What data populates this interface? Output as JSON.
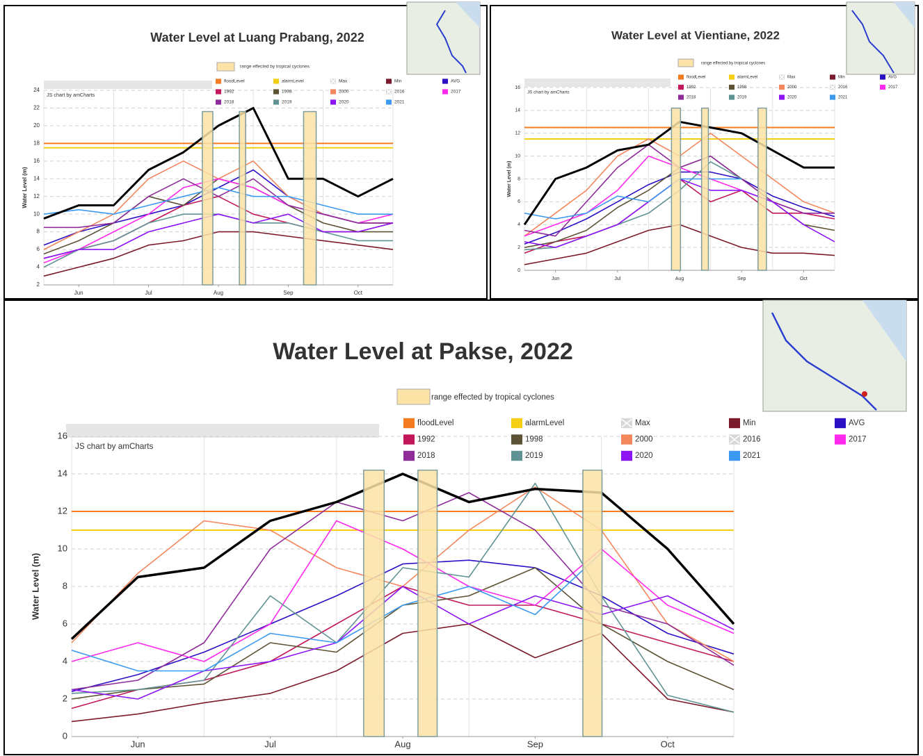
{
  "chart_data": [
    {
      "type": "line",
      "title": "Water Level at Luang Prabang, 2022",
      "y_label": "Water Level (m)",
      "credit": "JS chart by amCharts",
      "band_label": "range effected by tropical cyclones",
      "band_color": "#fce3a6",
      "bands": [
        {
          "from": 4.54,
          "to": 4.84,
          "top": 21.6
        },
        {
          "from": 5.6,
          "to": 5.78,
          "top": 21.6
        },
        {
          "from": 7.44,
          "to": 7.8,
          "top": 21.6
        }
      ],
      "x": [
        0,
        1,
        2,
        3,
        4,
        5,
        6,
        7,
        8,
        9,
        10
      ],
      "xlim": [
        0,
        10
      ],
      "xticks": [
        {
          "value": 1,
          "label": "Jun"
        },
        {
          "value": 3,
          "label": "Jul"
        },
        {
          "value": 5,
          "label": "Aug"
        },
        {
          "value": 7,
          "label": "Sep"
        },
        {
          "value": 9,
          "label": "Oct"
        }
      ],
      "ylim": [
        2,
        24
      ],
      "yticks": [
        2,
        4,
        6,
        8,
        10,
        12,
        14,
        16,
        18,
        20,
        22,
        24
      ],
      "grid": true,
      "series": [
        {
          "name": "floodLevel",
          "color": "#f47b20",
          "level": 18
        },
        {
          "name": "alarmLevel",
          "color": "#f5cf15",
          "level": 17.5
        },
        {
          "name": "Max",
          "color": "#bbbbbb",
          "hidden": true
        },
        {
          "name": "Min",
          "color": "#7b1a2a",
          "values": [
            3,
            4,
            5,
            6.5,
            7,
            8,
            8,
            7.5,
            7,
            6.5,
            6
          ]
        },
        {
          "name": "AVG",
          "color": "#2a0fc4",
          "values": [
            6.5,
            8,
            9,
            10,
            11,
            13,
            15,
            12,
            10,
            9,
            9
          ]
        },
        {
          "name": "1992",
          "color": "#c2185b",
          "values": [
            5,
            6,
            7,
            9,
            11,
            12,
            10,
            9,
            8,
            8,
            9
          ]
        },
        {
          "name": "1998",
          "color": "#5c5234",
          "values": [
            5.5,
            7,
            9,
            12,
            11,
            14,
            13,
            11,
            9,
            8,
            8
          ]
        },
        {
          "name": "2000",
          "color": "#f4875c",
          "values": [
            6,
            8,
            10,
            14,
            16,
            14,
            16,
            12,
            10,
            9,
            9
          ]
        },
        {
          "name": "2016",
          "color": "#bbbbbb",
          "hidden": true
        },
        {
          "name": "2017",
          "color": "#ff29ee",
          "values": [
            4.5,
            6,
            8,
            10,
            13,
            14,
            13,
            11,
            10,
            9,
            10
          ]
        },
        {
          "name": "2018",
          "color": "#8e2c9a",
          "values": [
            8.5,
            8.5,
            9,
            12,
            14,
            12,
            14,
            11,
            10,
            9,
            9
          ]
        },
        {
          "name": "2019",
          "color": "#5f9393",
          "values": [
            4,
            6,
            7,
            9,
            10,
            10,
            9,
            9,
            8,
            7,
            7
          ]
        },
        {
          "name": "2020",
          "color": "#8c14f5",
          "values": [
            5,
            6,
            6,
            8,
            9,
            10,
            9,
            10,
            8,
            8,
            9
          ]
        },
        {
          "name": "2021",
          "color": "#3b99f0",
          "values": [
            10,
            10.5,
            10,
            11,
            12,
            13,
            12,
            12,
            11,
            10,
            10
          ]
        },
        {
          "color": "#000000",
          "width": 3,
          "values": [
            9.5,
            11,
            11,
            15,
            17,
            20,
            22,
            14,
            14,
            12,
            14
          ]
        }
      ]
    },
    {
      "type": "line",
      "title": "Water Level at Vientiane, 2022",
      "y_label": "Water Level (m)",
      "credit": "JS chart by amCharts",
      "band_label": "range effected by tropical cyclones",
      "band_color": "#fce3a6",
      "bands": [
        {
          "from": 4.74,
          "to": 5.03,
          "top": 14.2
        },
        {
          "from": 5.71,
          "to": 5.93,
          "top": 14.2
        },
        {
          "from": 7.53,
          "to": 7.8,
          "top": 14.2
        }
      ],
      "x": [
        0,
        1,
        2,
        3,
        4,
        5,
        6,
        7,
        8,
        9,
        10
      ],
      "xlim": [
        0,
        10
      ],
      "xticks": [
        {
          "value": 1,
          "label": "Jun"
        },
        {
          "value": 3,
          "label": "Jul"
        },
        {
          "value": 5,
          "label": "Aug"
        },
        {
          "value": 7,
          "label": "Sep"
        },
        {
          "value": 9,
          "label": "Oct"
        }
      ],
      "ylim": [
        0,
        16
      ],
      "yticks": [
        0,
        2,
        4,
        6,
        8,
        10,
        12,
        14,
        16
      ],
      "grid": true,
      "series": [
        {
          "name": "floodLevel",
          "color": "#f47b20",
          "level": 12.5
        },
        {
          "name": "alarmLevel",
          "color": "#f5cf15",
          "level": 11.5
        },
        {
          "name": "Max",
          "color": "#bbbbbb",
          "hidden": true
        },
        {
          "name": "Min",
          "color": "#7b1a2a",
          "values": [
            0.5,
            1,
            1.5,
            2.5,
            3.5,
            4,
            3,
            2,
            1.5,
            1.5,
            1.3
          ]
        },
        {
          "name": "AVG",
          "color": "#2a0fc4",
          "values": [
            2.3,
            3.3,
            4.5,
            6,
            7.5,
            8.6,
            8.6,
            8,
            6.5,
            5.5,
            4.7
          ]
        },
        {
          "name": "1992",
          "color": "#c2185b",
          "values": [
            1.5,
            2.5,
            3,
            4,
            6,
            8,
            6,
            7,
            5,
            5,
            4.5
          ]
        },
        {
          "name": "1998",
          "color": "#5c5234",
          "values": [
            2,
            2.5,
            3.5,
            5.5,
            7,
            9,
            10,
            8,
            6,
            4,
            3.5
          ]
        },
        {
          "name": "2000",
          "color": "#f4875c",
          "values": [
            3,
            5,
            7,
            10,
            11.5,
            10,
            12,
            10,
            8,
            6,
            5
          ]
        },
        {
          "name": "2016",
          "color": "#bbbbbb",
          "hidden": true
        },
        {
          "name": "2017",
          "color": "#ff29ee",
          "values": [
            3,
            4,
            5,
            7,
            10,
            9,
            8,
            7,
            6,
            5,
            5
          ]
        },
        {
          "name": "2018",
          "color": "#8e2c9a",
          "values": [
            3.5,
            3,
            6,
            9,
            11,
            9,
            10,
            8,
            6,
            5,
            5
          ]
        },
        {
          "name": "2019",
          "color": "#5f9393",
          "values": [
            1.8,
            2,
            3,
            4,
            5,
            7,
            9.5,
            8,
            null,
            null,
            null
          ]
        },
        {
          "name": "2020",
          "color": "#8c14f5",
          "values": [
            2.5,
            2,
            3,
            4,
            6,
            8,
            7,
            7,
            6,
            4,
            2.5
          ]
        },
        {
          "name": "2021",
          "color": "#3b99f0",
          "values": [
            5,
            4.5,
            5,
            6.5,
            6,
            8,
            8,
            8,
            null,
            null,
            null
          ]
        },
        {
          "color": "#000000",
          "width": 3,
          "values": [
            4,
            8,
            9,
            10.5,
            11,
            13,
            12.5,
            12,
            10.5,
            9,
            9
          ]
        }
      ]
    },
    {
      "type": "line",
      "title": "Water Level at Pakse, 2022",
      "y_label": "Water Level (m)",
      "credit": "JS chart by amCharts",
      "band_label": "range effected by tropical cyclones",
      "band_color": "#fce3a6",
      "bands": [
        {
          "from": 4.41,
          "to": 4.72,
          "top": 14.2
        },
        {
          "from": 5.23,
          "to": 5.52,
          "top": 14.2
        },
        {
          "from": 7.72,
          "to": 8.01,
          "top": 14.2
        }
      ],
      "x": [
        0,
        1,
        2,
        3,
        4,
        5,
        6,
        7,
        8,
        9,
        10
      ],
      "xlim": [
        0,
        10
      ],
      "xticks": [
        {
          "value": 1,
          "label": "Jun"
        },
        {
          "value": 3,
          "label": "Jul"
        },
        {
          "value": 5,
          "label": "Aug"
        },
        {
          "value": 7,
          "label": "Sep"
        },
        {
          "value": 9,
          "label": "Oct"
        }
      ],
      "ylim": [
        0,
        16
      ],
      "yticks": [
        0,
        2,
        4,
        6,
        8,
        10,
        12,
        14,
        16
      ],
      "grid": true,
      "series": [
        {
          "name": "floodLevel",
          "color": "#f47b20",
          "level": 12
        },
        {
          "name": "alarmLevel",
          "color": "#f5cf15",
          "level": 11
        },
        {
          "name": "Max",
          "color": "#bbbbbb",
          "hidden": true
        },
        {
          "name": "Min",
          "color": "#7b1a2a",
          "values": [
            0.8,
            1.2,
            1.8,
            2.3,
            3.5,
            5.5,
            6,
            4.2,
            5.5,
            2,
            1.3
          ]
        },
        {
          "name": "AVG",
          "color": "#2a0fc4",
          "values": [
            2.4,
            3.3,
            4.5,
            6,
            7.5,
            9.2,
            9.4,
            9,
            7.5,
            5.5,
            4.4
          ]
        },
        {
          "name": "1992",
          "color": "#c2185b",
          "values": [
            1.5,
            2.5,
            3,
            4,
            6,
            8,
            7,
            7,
            6,
            5,
            4
          ]
        },
        {
          "name": "1998",
          "color": "#5c5234",
          "values": [
            2,
            2.5,
            2.8,
            5,
            4.5,
            7,
            7.5,
            9,
            6,
            4,
            2.5
          ]
        },
        {
          "name": "2000",
          "color": "#f4875c",
          "values": [
            5,
            8.7,
            11.5,
            11,
            9,
            8,
            11,
            13.3,
            11,
            6,
            4
          ]
        },
        {
          "name": "2016",
          "color": "#bbbbbb",
          "hidden": true
        },
        {
          "name": "2017",
          "color": "#ff29ee",
          "values": [
            4,
            5,
            4,
            6,
            11.5,
            10,
            8,
            7,
            10,
            7,
            5.5
          ]
        },
        {
          "name": "2018",
          "color": "#8e2c9a",
          "values": [
            2.5,
            3,
            5,
            10,
            12.5,
            11.5,
            13,
            11,
            7,
            6,
            3.8
          ]
        },
        {
          "name": "2019",
          "color": "#5f9393",
          "values": [
            2.3,
            2.5,
            3,
            7.5,
            5,
            9,
            8.5,
            13.5,
            7.5,
            2.2,
            1.3
          ]
        },
        {
          "name": "2020",
          "color": "#8c14f5",
          "values": [
            2.5,
            2,
            3.5,
            4,
            5,
            8,
            6,
            7.5,
            6.5,
            7.5,
            5.7
          ]
        },
        {
          "name": "2021",
          "color": "#3b99f0",
          "values": [
            4.6,
            3.5,
            3.5,
            5.5,
            5,
            7,
            8,
            6.5,
            9.8,
            null,
            null
          ]
        },
        {
          "color": "#000000",
          "width": 3.5,
          "values": [
            5.2,
            8.5,
            9,
            11.5,
            12.5,
            14,
            12.5,
            13.2,
            13,
            10,
            6
          ]
        }
      ]
    }
  ]
}
